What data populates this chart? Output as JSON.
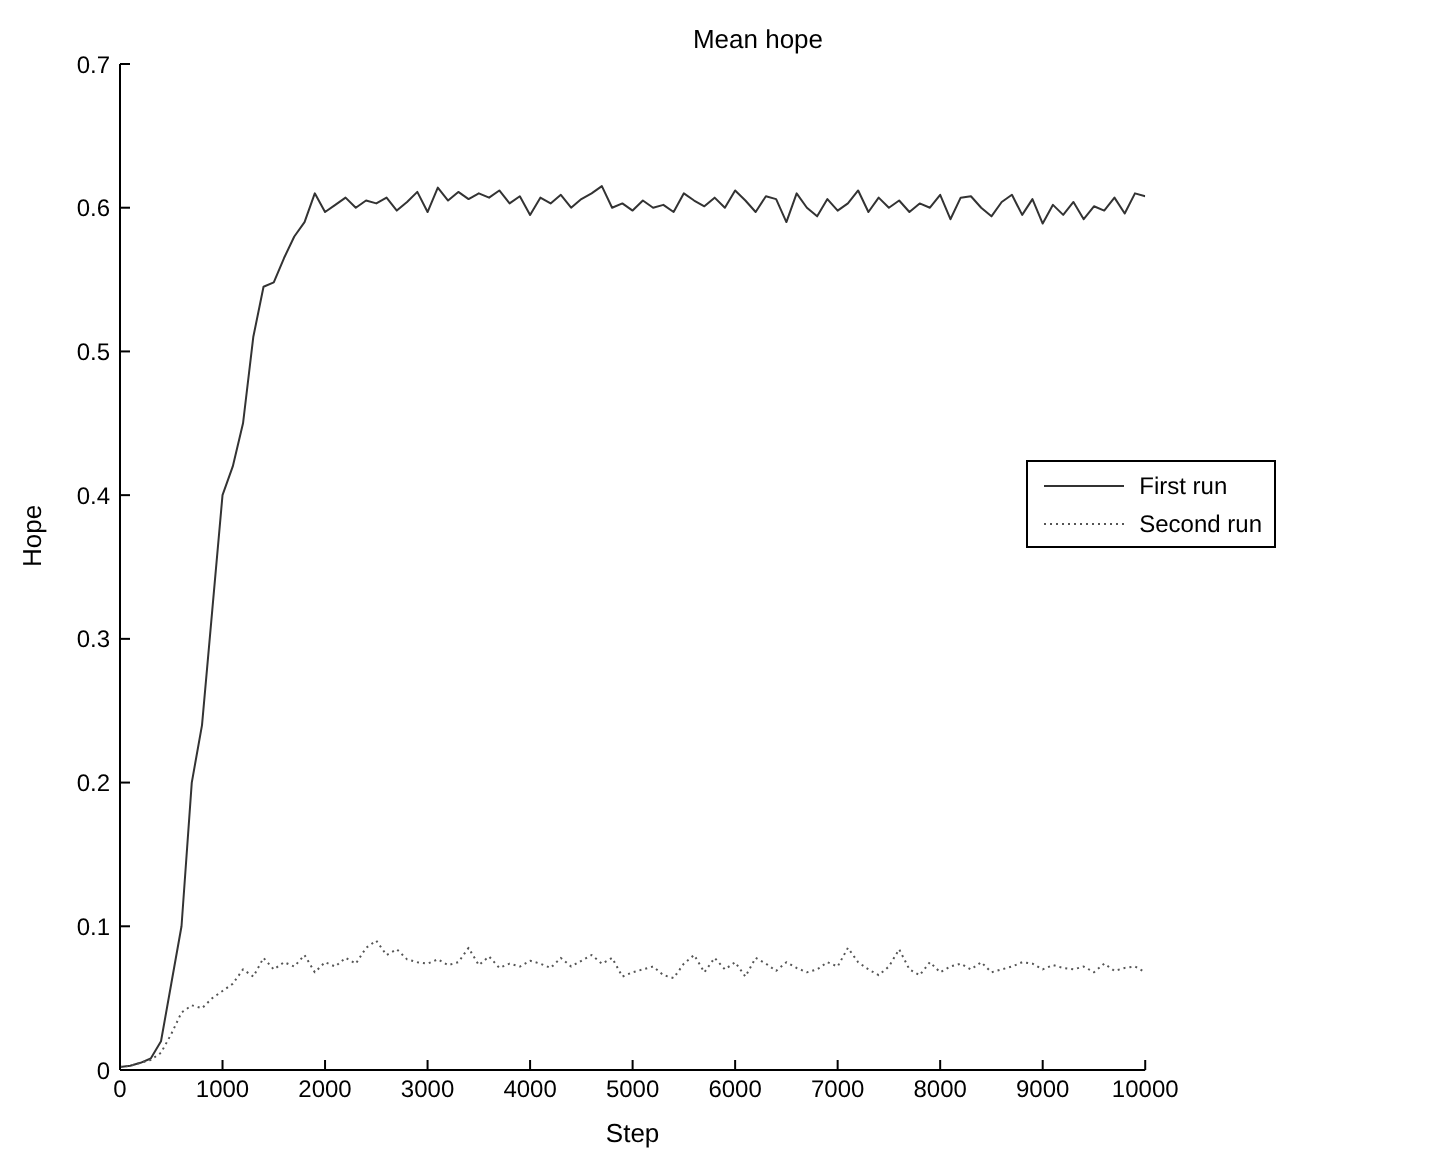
{
  "chart_data": {
    "type": "line",
    "title": "Mean hope",
    "xlabel": "Step",
    "ylabel": "Hope",
    "x": [
      0,
      100,
      200,
      300,
      400,
      500,
      600,
      700,
      800,
      900,
      1000,
      1100,
      1200,
      1300,
      1400,
      1500,
      1600,
      1700,
      1800,
      1900,
      2000,
      2100,
      2200,
      2300,
      2400,
      2500,
      2600,
      2700,
      2800,
      2900,
      3000,
      3100,
      3200,
      3300,
      3400,
      3500,
      3600,
      3700,
      3800,
      3900,
      4000,
      4100,
      4200,
      4300,
      4400,
      4500,
      4600,
      4700,
      4800,
      4900,
      5000,
      5100,
      5200,
      5300,
      5400,
      5500,
      5600,
      5700,
      5800,
      5900,
      6000,
      6100,
      6200,
      6300,
      6400,
      6500,
      6600,
      6700,
      6800,
      6900,
      7000,
      7100,
      7200,
      7300,
      7400,
      7500,
      7600,
      7700,
      7800,
      7900,
      8000,
      8100,
      8200,
      8300,
      8400,
      8500,
      8600,
      8700,
      8800,
      8900,
      9000,
      9100,
      9200,
      9300,
      9400,
      9500,
      9600,
      9700,
      9800,
      9900,
      10000
    ],
    "series": [
      {
        "name": "First run",
        "color": "#333333",
        "line_style": "solid",
        "values": [
          0.002,
          0.003,
          0.005,
          0.008,
          0.02,
          0.06,
          0.1,
          0.2,
          0.24,
          0.32,
          0.4,
          0.42,
          0.45,
          0.51,
          0.545,
          0.548,
          0.565,
          0.58,
          0.59,
          0.61,
          0.597,
          0.602,
          0.607,
          0.6,
          0.605,
          0.603,
          0.607,
          0.598,
          0.604,
          0.611,
          0.597,
          0.614,
          0.605,
          0.611,
          0.606,
          0.61,
          0.607,
          0.612,
          0.603,
          0.608,
          0.595,
          0.607,
          0.603,
          0.609,
          0.6,
          0.606,
          0.61,
          0.615,
          0.6,
          0.603,
          0.598,
          0.605,
          0.6,
          0.602,
          0.597,
          0.61,
          0.605,
          0.601,
          0.607,
          0.6,
          0.612,
          0.605,
          0.597,
          0.608,
          0.606,
          0.59,
          0.61,
          0.6,
          0.594,
          0.606,
          0.598,
          0.603,
          0.612,
          0.597,
          0.607,
          0.6,
          0.605,
          0.597,
          0.603,
          0.6,
          0.609,
          0.592,
          0.607,
          0.608,
          0.6,
          0.594,
          0.604,
          0.609,
          0.595,
          0.606,
          0.589,
          0.602,
          0.595,
          0.604,
          0.592,
          0.601,
          0.598,
          0.607,
          0.596,
          0.61,
          0.608
        ]
      },
      {
        "name": "Second run",
        "color": "#555555",
        "line_style": "dotted",
        "values": [
          0.002,
          0.003,
          0.005,
          0.007,
          0.012,
          0.025,
          0.04,
          0.045,
          0.043,
          0.05,
          0.055,
          0.06,
          0.07,
          0.065,
          0.078,
          0.07,
          0.075,
          0.072,
          0.08,
          0.068,
          0.075,
          0.072,
          0.078,
          0.074,
          0.085,
          0.09,
          0.08,
          0.084,
          0.077,
          0.075,
          0.074,
          0.077,
          0.073,
          0.075,
          0.085,
          0.073,
          0.079,
          0.071,
          0.074,
          0.072,
          0.076,
          0.074,
          0.071,
          0.078,
          0.072,
          0.076,
          0.08,
          0.074,
          0.078,
          0.065,
          0.068,
          0.07,
          0.072,
          0.066,
          0.064,
          0.074,
          0.08,
          0.068,
          0.078,
          0.07,
          0.075,
          0.065,
          0.078,
          0.074,
          0.069,
          0.075,
          0.071,
          0.068,
          0.07,
          0.075,
          0.072,
          0.085,
          0.075,
          0.07,
          0.066,
          0.072,
          0.084,
          0.07,
          0.066,
          0.075,
          0.068,
          0.072,
          0.074,
          0.07,
          0.075,
          0.068,
          0.07,
          0.072,
          0.075,
          0.074,
          0.07,
          0.073,
          0.071,
          0.07,
          0.072,
          0.068,
          0.074,
          0.069,
          0.071,
          0.072,
          0.068
        ]
      }
    ],
    "xlim": [
      0,
      10000
    ],
    "xticks": [
      0,
      1000,
      2000,
      3000,
      4000,
      5000,
      6000,
      7000,
      8000,
      9000,
      10000
    ],
    "ylim": [
      0,
      0.7
    ],
    "yticks": [
      0,
      0.1,
      0.2,
      0.3,
      0.4,
      0.5,
      0.6,
      0.7
    ],
    "grid": false,
    "legend": "right",
    "marker": "none"
  }
}
